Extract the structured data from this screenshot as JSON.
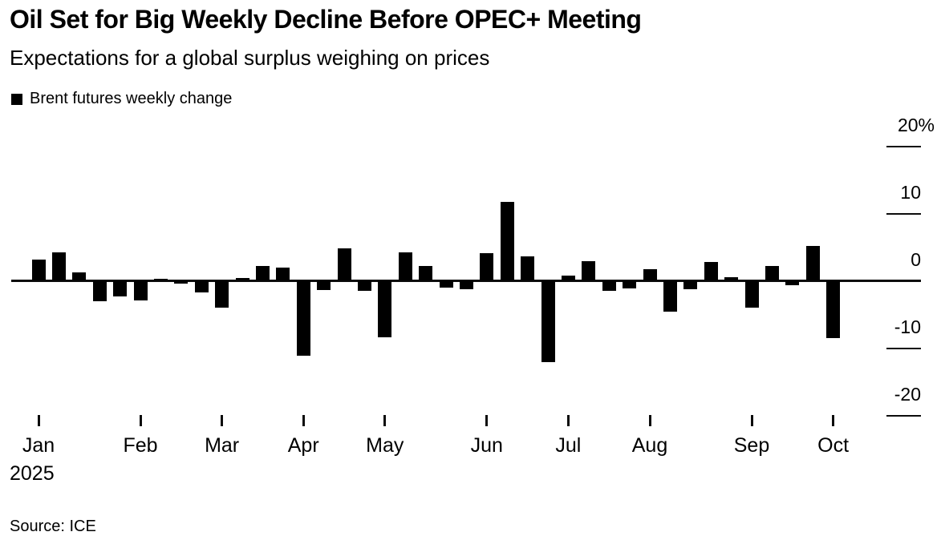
{
  "header": {
    "title": "Oil Set for Big Weekly Decline Before OPEC+ Meeting",
    "subtitle": "Expectations for a global surplus weighing on prices"
  },
  "legend": {
    "label": "Brent futures weekly change",
    "swatch_color": "#000000"
  },
  "source_line": "Source: ICE",
  "colors": {
    "bar": "#000000",
    "axis": "#0c0c0c",
    "background": "#ffffff",
    "text": "#000000"
  },
  "chart_data": {
    "type": "bar",
    "title": "Oil Set for Big Weekly Decline Before OPEC+ Meeting",
    "subtitle": "Expectations for a global surplus weighing on prices",
    "series": [
      {
        "name": "Brent futures weekly change",
        "color": "#000000",
        "values": [
          3.1,
          4.2,
          1.2,
          -3.1,
          -2.4,
          -3.0,
          0.2,
          -0.5,
          -1.8,
          -4.0,
          0.3,
          2.1,
          1.9,
          -11.2,
          -1.4,
          4.8,
          -1.6,
          -8.5,
          4.2,
          2.2,
          -1.1,
          -1.3,
          4.0,
          11.7,
          3.6,
          -12.1,
          0.7,
          2.9,
          -1.5,
          -1.2,
          1.7,
          -4.6,
          -1.3,
          2.7,
          0.5,
          -4.1,
          2.1,
          -0.7,
          5.1,
          -8.6
        ]
      }
    ],
    "x_axis": {
      "unit": "weekly bars",
      "month_tick_labels": [
        "Jan",
        "Feb",
        "Mar",
        "Apr",
        "May",
        "Jun",
        "Jul",
        "Aug",
        "Sep",
        "Oct"
      ],
      "year_label": "2025",
      "weeks_per_month": [
        5,
        4,
        4,
        4,
        5,
        4,
        4,
        5,
        4,
        1
      ],
      "note": "month tick aligns with first weekly bar of each month"
    },
    "y_axis": {
      "side": "right",
      "unit": "%",
      "tick_labels": [
        "20%",
        "10",
        "0",
        "-10",
        "-20"
      ],
      "tick_values": [
        20,
        10,
        0,
        -10,
        -20
      ],
      "ylim": [
        -24,
        24
      ]
    },
    "grid": false,
    "legend_position": "top-left"
  }
}
